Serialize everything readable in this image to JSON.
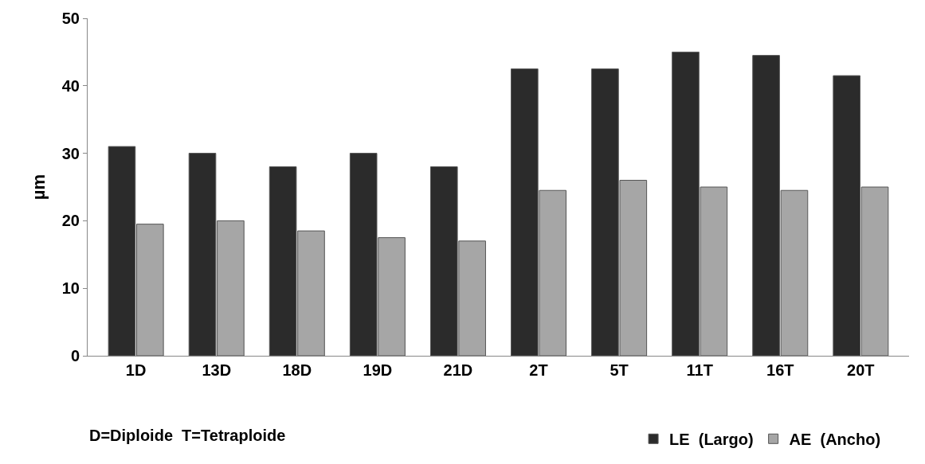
{
  "chart_data": {
    "type": "bar",
    "ylabel": "µm",
    "categories": [
      "1D",
      "13D",
      "18D",
      "19D",
      "21D",
      "2T",
      "5T",
      "11T",
      "16T",
      "20T"
    ],
    "series": [
      {
        "name": "LE  (Largo)",
        "color": "#2b2b2b",
        "values": [
          31,
          30,
          28,
          30,
          28,
          42.5,
          42.5,
          45,
          44.5,
          41.5
        ]
      },
      {
        "name": "AE  (Ancho)",
        "color": "#a6a6a6",
        "values": [
          19.5,
          20,
          18.5,
          17.5,
          17,
          24.5,
          26,
          25,
          24.5,
          25
        ]
      }
    ],
    "ylim": [
      0,
      50
    ],
    "yticks": [
      0,
      10,
      20,
      30,
      40,
      50
    ],
    "legend": "bottom",
    "annotations": [
      "D=Diploide  T=Tetraploide"
    ]
  }
}
